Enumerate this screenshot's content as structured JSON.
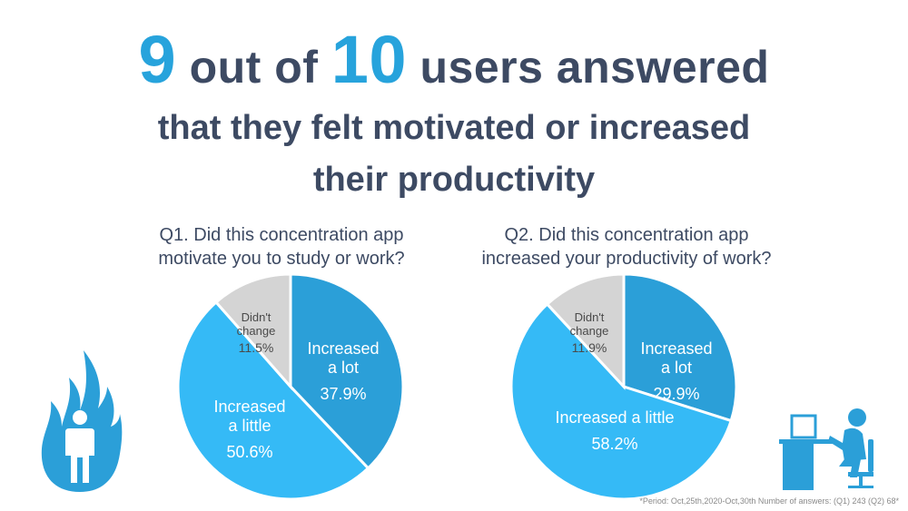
{
  "headline": {
    "num1": "9",
    "text1": " out of ",
    "num2": "10",
    "text2": " users answered",
    "line2": "that they felt motivated or increased",
    "line3": "their productivity"
  },
  "colors": {
    "accent": "#27a3dc",
    "lot": "#2b9fd8",
    "little": "#35baf6",
    "nochange": "#d4d4d4",
    "text": "#3d4a63"
  },
  "icons": {
    "left": "flame-person-icon",
    "right": "desk-worker-icon"
  },
  "chart_data": [
    {
      "type": "pie",
      "title": "Q1. Did this concentration app motivate you to study or work?",
      "title_lines": [
        "Q1. Did this concentration app",
        "motivate you to study or work?"
      ],
      "slices": [
        {
          "label": "Increased a lot",
          "label_lines": [
            "Increased",
            "a lot"
          ],
          "value": 37.9,
          "value_text": "37.9%",
          "color": "#2b9fd8"
        },
        {
          "label": "Increased a little",
          "label_lines": [
            "Increased",
            "a little"
          ],
          "value": 50.6,
          "value_text": "50.6%",
          "color": "#35baf6"
        },
        {
          "label": "Didn't change",
          "label_lines": [
            "Didn't",
            "change"
          ],
          "value": 11.5,
          "value_text": "11.5%",
          "color": "#d4d4d4"
        }
      ]
    },
    {
      "type": "pie",
      "title": "Q2. Did this concentration app increased your productivity of work?",
      "title_lines": [
        "Q2. Did this concentration app",
        "increased your productivity of work?"
      ],
      "slices": [
        {
          "label": "Increased a lot",
          "label_lines": [
            "Increased",
            "a lot"
          ],
          "value": 29.9,
          "value_text": "29.9%",
          "color": "#2b9fd8"
        },
        {
          "label": "Increased a little",
          "label_lines": [
            "Increased a little"
          ],
          "value": 58.2,
          "value_text": "58.2%",
          "color": "#35baf6"
        },
        {
          "label": "Didn't change",
          "label_lines": [
            "Didn't",
            "change"
          ],
          "value": 11.9,
          "value_text": "11.9%",
          "color": "#d4d4d4"
        }
      ]
    }
  ],
  "footnote": "*Period: Oct,25th,2020-Oct,30th Number of answers: (Q1) 243 (Q2) 68*"
}
